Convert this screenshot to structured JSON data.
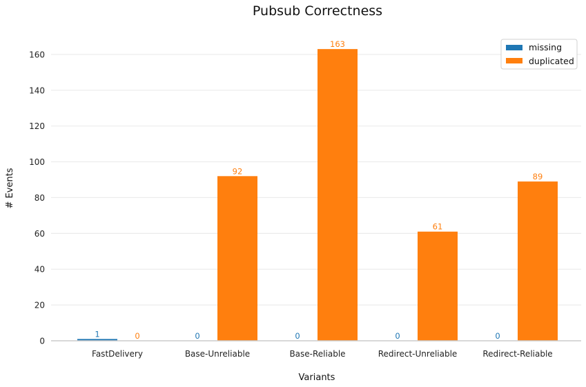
{
  "chart_data": {
    "type": "bar",
    "title": "Pubsub Correctness",
    "xlabel": "Variants",
    "ylabel": "# Events",
    "categories": [
      "FastDelivery",
      "Base-Unreliable",
      "Base-Reliable",
      "Redirect-Unreliable",
      "Redirect-Reliable"
    ],
    "series": [
      {
        "name": "missing",
        "color": "#1f77b4",
        "values": [
          1,
          0,
          0,
          0,
          0
        ]
      },
      {
        "name": "duplicated",
        "color": "#ff7f0e",
        "values": [
          0,
          92,
          163,
          61,
          89
        ]
      }
    ],
    "ylim": [
      0,
      175
    ],
    "yticks": [
      0,
      20,
      40,
      60,
      80,
      100,
      120,
      140,
      160
    ],
    "grid": true,
    "legend_position": "top-right",
    "data_labels": true
  }
}
